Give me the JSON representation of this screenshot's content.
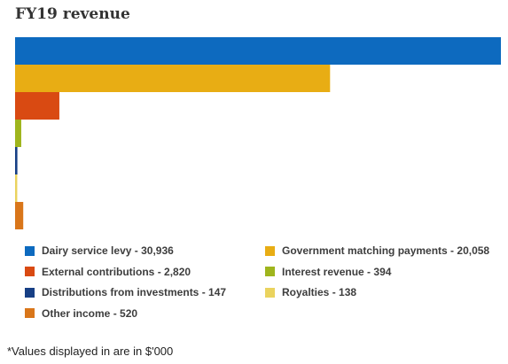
{
  "chart_data": {
    "type": "bar",
    "orientation": "horizontal",
    "title": "FY19 revenue",
    "categories": [
      "Dairy service levy",
      "Government matching payments",
      "External contributions",
      "Interest revenue",
      "Distributions from investments",
      "Royalties",
      "Other income"
    ],
    "values": [
      30936,
      20058,
      2820,
      394,
      147,
      138,
      520
    ],
    "value_labels": [
      "30,936",
      "20,058",
      "2,820",
      "394",
      "147",
      "138",
      "520"
    ],
    "colors": [
      "#0d6abf",
      "#e8ad14",
      "#d94a12",
      "#9fb51d",
      "#173f85",
      "#ead35e",
      "#d9761a"
    ],
    "xlim": [
      0,
      30936
    ],
    "grid": false,
    "legend_position": "bottom",
    "footnote": "*Values displayed in are in $'000"
  }
}
